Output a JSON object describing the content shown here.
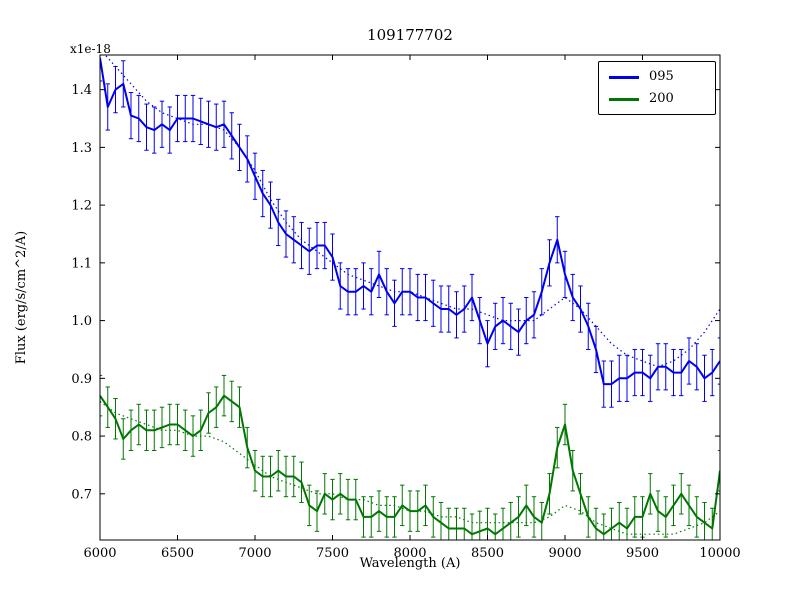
{
  "chart_data": {
    "type": "line",
    "title": "109177702",
    "xlabel": "Wavelength (A)",
    "ylabel": "Flux (erg/s/cm^2/A)",
    "offset_label": "x1e-18",
    "xlim": [
      6000,
      10000
    ],
    "ylim": [
      0.62,
      1.46
    ],
    "grid": false,
    "xtick_values": [
      6000,
      6500,
      7000,
      7500,
      8000,
      8500,
      9000,
      9500,
      10000
    ],
    "xtick_labels": [
      "6000",
      "6500",
      "7000",
      "7500",
      "8000",
      "8500",
      "9000",
      "9500",
      "10000"
    ],
    "ytick_values": [
      0.7,
      0.8,
      0.9,
      1.0,
      1.1,
      1.2,
      1.3,
      1.4
    ],
    "ytick_labels": [
      "0.7",
      "0.8",
      "0.9",
      "1.0",
      "1.1",
      "1.2",
      "1.3",
      "1.4"
    ],
    "legend": {
      "position": "upper right",
      "entries": [
        {
          "label": "095",
          "color": "#0000ee"
        },
        {
          "label": "200",
          "color": "#007700"
        }
      ]
    },
    "series": [
      {
        "name": "095",
        "color": "#0000ee",
        "style": "solid",
        "yerr": 0.04,
        "x_start": 6000,
        "x_step": 50,
        "values": [
          1.455,
          1.37,
          1.4,
          1.41,
          1.355,
          1.35,
          1.335,
          1.33,
          1.34,
          1.33,
          1.35,
          1.35,
          1.35,
          1.345,
          1.34,
          1.335,
          1.34,
          1.32,
          1.3,
          1.28,
          1.25,
          1.22,
          1.2,
          1.17,
          1.15,
          1.14,
          1.13,
          1.12,
          1.13,
          1.13,
          1.11,
          1.06,
          1.05,
          1.05,
          1.06,
          1.05,
          1.08,
          1.05,
          1.03,
          1.05,
          1.05,
          1.04,
          1.04,
          1.03,
          1.02,
          1.02,
          1.01,
          1.02,
          1.04,
          1.0,
          0.96,
          0.99,
          1.0,
          0.99,
          0.98,
          1.0,
          1.01,
          1.05,
          1.1,
          1.14,
          1.08,
          1.04,
          1.02,
          0.99,
          0.95,
          0.89,
          0.89,
          0.9,
          0.9,
          0.91,
          0.91,
          0.9,
          0.92,
          0.92,
          0.91,
          0.91,
          0.93,
          0.92,
          0.9,
          0.91,
          0.93
        ]
      },
      {
        "name": "200",
        "color": "#007700",
        "style": "solid",
        "yerr": 0.035,
        "x_start": 6000,
        "x_step": 50,
        "values": [
          0.87,
          0.85,
          0.83,
          0.795,
          0.81,
          0.82,
          0.81,
          0.81,
          0.815,
          0.82,
          0.82,
          0.81,
          0.8,
          0.81,
          0.84,
          0.85,
          0.87,
          0.86,
          0.85,
          0.78,
          0.74,
          0.73,
          0.73,
          0.74,
          0.73,
          0.73,
          0.72,
          0.68,
          0.67,
          0.7,
          0.69,
          0.7,
          0.69,
          0.69,
          0.66,
          0.66,
          0.67,
          0.66,
          0.66,
          0.68,
          0.67,
          0.67,
          0.68,
          0.66,
          0.65,
          0.64,
          0.64,
          0.64,
          0.63,
          0.635,
          0.64,
          0.63,
          0.64,
          0.65,
          0.66,
          0.68,
          0.66,
          0.65,
          0.7,
          0.78,
          0.82,
          0.74,
          0.7,
          0.66,
          0.64,
          0.63,
          0.64,
          0.65,
          0.64,
          0.66,
          0.66,
          0.7,
          0.67,
          0.66,
          0.68,
          0.7,
          0.68,
          0.66,
          0.65,
          0.64,
          0.74
        ]
      },
      {
        "name": "095-model",
        "color": "#0000ee",
        "style": "dotted",
        "yerr": 0,
        "x_start": 6000,
        "x_step": 100,
        "values": [
          1.47,
          1.44,
          1.41,
          1.38,
          1.36,
          1.35,
          1.34,
          1.34,
          1.33,
          1.3,
          1.26,
          1.21,
          1.17,
          1.14,
          1.12,
          1.1,
          1.08,
          1.07,
          1.06,
          1.05,
          1.05,
          1.04,
          1.03,
          1.02,
          1.02,
          1.01,
          1.0,
          1.0,
          1.0,
          1.02,
          1.04,
          1.02,
          0.99,
          0.96,
          0.94,
          0.93,
          0.92,
          0.93,
          0.95,
          0.98,
          1.02
        ]
      },
      {
        "name": "200-model",
        "color": "#007700",
        "style": "dotted",
        "yerr": 0,
        "x_start": 6000,
        "x_step": 100,
        "values": [
          0.86,
          0.84,
          0.83,
          0.82,
          0.81,
          0.81,
          0.8,
          0.8,
          0.79,
          0.77,
          0.75,
          0.73,
          0.72,
          0.71,
          0.7,
          0.7,
          0.69,
          0.69,
          0.68,
          0.68,
          0.67,
          0.67,
          0.66,
          0.66,
          0.65,
          0.65,
          0.65,
          0.65,
          0.65,
          0.66,
          0.68,
          0.67,
          0.65,
          0.64,
          0.63,
          0.63,
          0.63,
          0.63,
          0.64,
          0.65,
          0.67
        ]
      }
    ]
  }
}
